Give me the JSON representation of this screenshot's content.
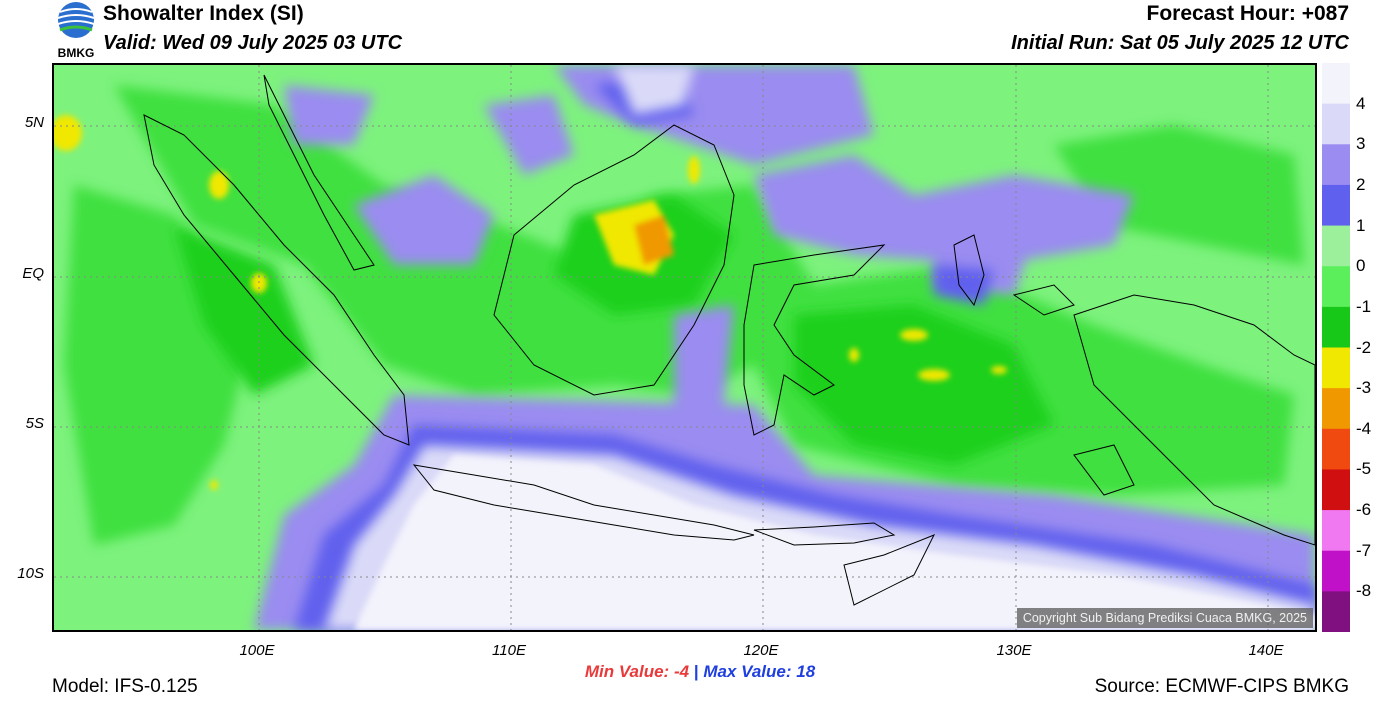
{
  "header": {
    "title": "Showalter Index (SI)",
    "valid": "Valid: Wed 09 July 2025 03 UTC",
    "forecast_hour": "Forecast Hour: +087",
    "initial_run": "Initial Run: Sat 05 July 2025 12 UTC"
  },
  "logo": {
    "text": "BMKG"
  },
  "map": {
    "lat_labels": [
      "5N",
      "EQ",
      "5S",
      "10S"
    ],
    "lon_labels": [
      "100E",
      "110E",
      "120E",
      "130E",
      "140E"
    ],
    "copyright": "Copyright Sub Bidang Prediksi Cuaca BMKG, 2025"
  },
  "colorbar": {
    "labels": [
      "4",
      "3",
      "2",
      "1",
      "0",
      "-1",
      "-2",
      "-3",
      "-4",
      "-5",
      "-6",
      "-7",
      "-8"
    ],
    "colors": [
      "#f3f3fc",
      "#dadaf8",
      "#9a8cf0",
      "#6060ee",
      "#9cf09c",
      "#5cef5c",
      "#18c818",
      "#f0e800",
      "#f09800",
      "#f04a10",
      "#d01010",
      "#f078f0",
      "#c010c8",
      "#801080"
    ]
  },
  "footer": {
    "min_label": "Min Value:",
    "min_value": "-4",
    "separator": "|",
    "max_label": "Max Value:",
    "max_value": "18",
    "model": "Model: IFS-0.125",
    "source": "Source: ECMWF-CIPS BMKG"
  }
}
